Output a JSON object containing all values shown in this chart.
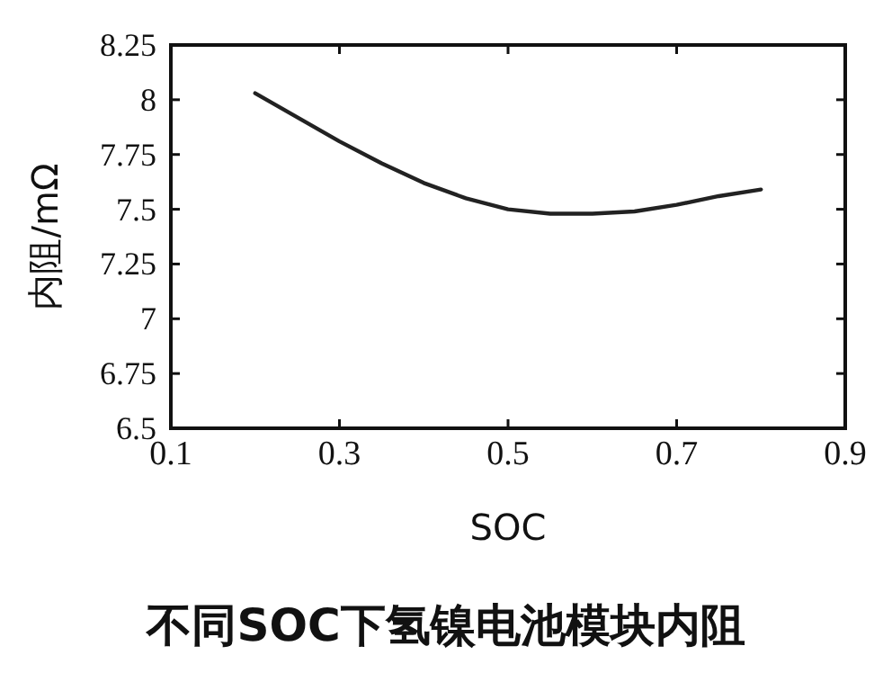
{
  "chart_data": {
    "type": "line",
    "title": "不同SOC下氢镍电池模块内阻",
    "xlabel": "SOC",
    "ylabel": "内阻/mΩ",
    "x": [
      0.2,
      0.25,
      0.3,
      0.35,
      0.4,
      0.45,
      0.5,
      0.55,
      0.6,
      0.65,
      0.7,
      0.75,
      0.8
    ],
    "series": [
      {
        "color": "#222222",
        "values": [
          8.03,
          7.92,
          7.81,
          7.71,
          7.62,
          7.55,
          7.5,
          7.48,
          7.48,
          7.49,
          7.52,
          7.56,
          7.59
        ]
      }
    ],
    "xlim": [
      0.1,
      0.9
    ],
    "xticks": [
      0.1,
      0.3,
      0.5,
      0.7,
      0.9
    ],
    "ylim": [
      6.5,
      8.25
    ],
    "yticks": [
      6.5,
      6.75,
      7,
      7.25,
      7.5,
      7.75,
      8,
      8.25
    ],
    "line_style": "solid"
  }
}
